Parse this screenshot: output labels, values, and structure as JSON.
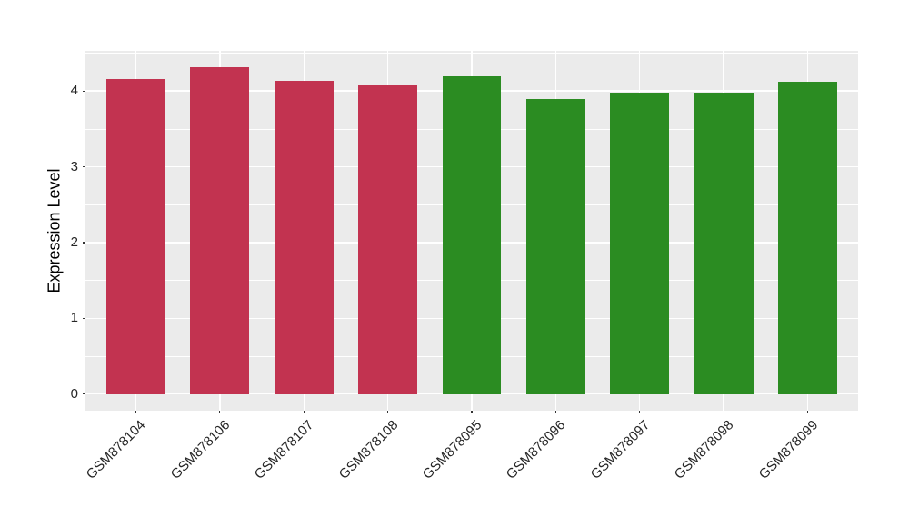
{
  "chart_data": {
    "type": "bar",
    "title": "",
    "xlabel": "",
    "ylabel": "Expression Level",
    "categories": [
      "GSM878104",
      "GSM878106",
      "GSM878107",
      "GSM878108",
      "GSM878095",
      "GSM878096",
      "GSM878097",
      "GSM878098",
      "GSM878099"
    ],
    "values": [
      4.16,
      4.31,
      4.14,
      4.07,
      4.19,
      3.9,
      3.98,
      3.98,
      4.12
    ],
    "groups": [
      "group1",
      "group1",
      "group1",
      "group1",
      "group2",
      "group2",
      "group2",
      "group2",
      "group2"
    ],
    "group_colors": {
      "group1": "#C23350",
      "group2": "#2B8C22"
    },
    "yticks": [
      0,
      1,
      2,
      3,
      4
    ],
    "ytick_labels": [
      "0",
      "1",
      "2",
      "3",
      "4"
    ],
    "yticks_minor": [
      0.5,
      1.5,
      2.5,
      3.5,
      4.5
    ],
    "ylim": [
      -0.22,
      4.53
    ],
    "bar_width_fraction": 0.7,
    "x_outer_padding": 0.6,
    "x_tick_label_rotation": 45,
    "grid": true,
    "legend": "none",
    "panel_bg": "#EBEBEB",
    "grid_color": "#FFFFFF",
    "tick_color": "#333333",
    "axis_text_color": "#262626",
    "axis_title_color": "#000000"
  }
}
